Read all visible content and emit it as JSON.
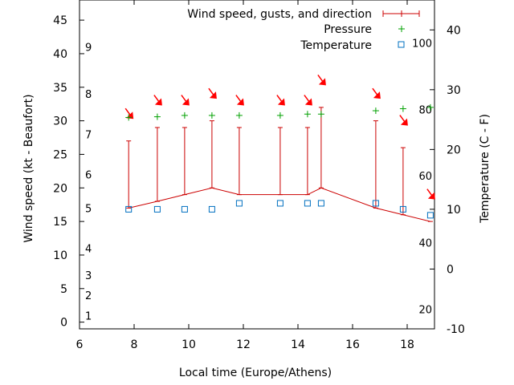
{
  "chart_data": {
    "type": "line",
    "xlabel": "Local time (Europe/Athens)",
    "ylabel": "Wind speed (kt - Beaufort)",
    "y2label": "Temperature (C - F)",
    "xlim": [
      6,
      19
    ],
    "xticks": [
      6,
      8,
      10,
      12,
      14,
      16,
      18
    ],
    "ylim": [
      -1,
      48
    ],
    "yticks": [
      0,
      5,
      10,
      15,
      20,
      25,
      30,
      35,
      40,
      45
    ],
    "y2lim": [
      -10,
      45
    ],
    "y2ticks": [
      -10,
      0,
      10,
      20,
      30,
      40
    ],
    "fahrenheit_labels": [
      {
        "f": 20,
        "c": -6.7
      },
      {
        "f": 40,
        "c": 4.4
      },
      {
        "f": 60,
        "c": 15.6
      },
      {
        "f": 80,
        "c": 26.7
      },
      {
        "f": 100,
        "c": 37.8
      }
    ],
    "beaufort_labels": [
      {
        "b": "1",
        "kt": 1
      },
      {
        "b": "2",
        "kt": 4
      },
      {
        "b": "3",
        "kt": 7
      },
      {
        "b": "4",
        "kt": 11
      },
      {
        "b": "5",
        "kt": 17
      },
      {
        "b": "6",
        "kt": 22
      },
      {
        "b": "7",
        "kt": 28
      },
      {
        "b": "8",
        "kt": 34
      },
      {
        "b": "9",
        "kt": 41
      }
    ],
    "legend_position": "top-right",
    "series": [
      {
        "name": "Wind speed, gusts, and direction",
        "color": "#cc0000",
        "x": [
          7.8,
          8.85,
          9.85,
          10.85,
          11.85,
          13.35,
          14.35,
          14.85,
          16.85,
          17.85,
          18.85
        ],
        "speed": [
          17,
          18,
          19,
          20,
          19,
          19,
          19,
          20,
          17,
          16,
          15
        ],
        "gust": [
          27,
          29,
          29,
          30,
          29,
          29,
          29,
          32,
          30,
          26,
          15
        ],
        "arrow_x": [
          7.8,
          8.85,
          9.85,
          10.85,
          11.85,
          13.35,
          14.35,
          14.85,
          16.85,
          17.85,
          18.85
        ],
        "arrow_y": [
          31,
          33,
          33,
          34,
          33,
          33,
          33,
          36,
          34,
          30,
          19
        ]
      },
      {
        "name": "Pressure",
        "color": "#00a000",
        "x": [
          7.8,
          8.85,
          9.85,
          10.85,
          11.85,
          13.35,
          14.35,
          14.85,
          16.85,
          17.85,
          18.85
        ],
        "y": [
          30.5,
          30.6,
          30.8,
          30.8,
          30.8,
          30.8,
          31,
          31,
          31.5,
          31.8,
          32
        ]
      },
      {
        "name": "Temperature",
        "color": "#0070c0",
        "x": [
          7.8,
          8.85,
          9.85,
          10.85,
          11.85,
          13.35,
          14.35,
          14.85,
          16.85,
          17.85,
          18.85
        ],
        "y": [
          10,
          10,
          10,
          10,
          11,
          11,
          11,
          11,
          11,
          10,
          9
        ]
      }
    ]
  }
}
